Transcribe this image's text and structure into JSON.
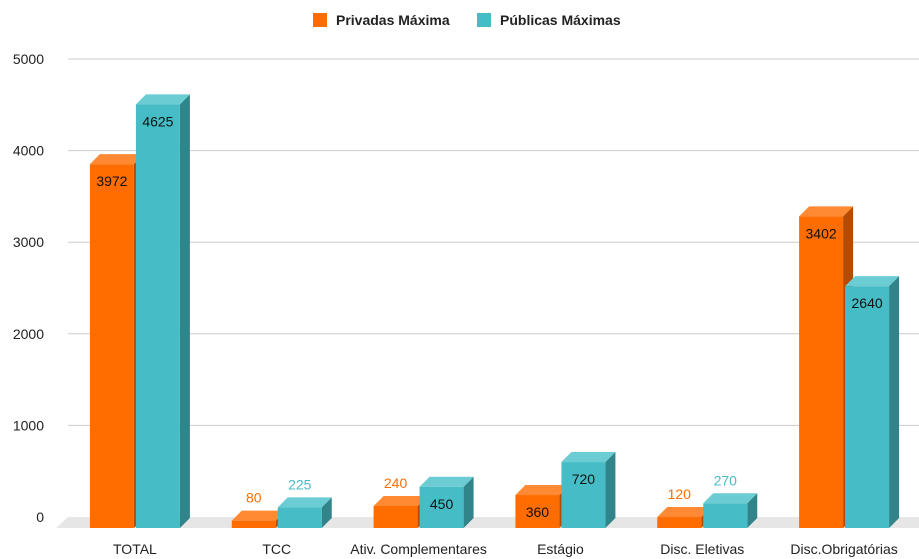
{
  "chart_data": {
    "type": "bar",
    "title": "",
    "xlabel": "",
    "ylabel": "",
    "categories": [
      "TOTAL",
      "TCC",
      "Ativ. Complementares",
      "Estágio",
      "Disc. Eletivas",
      "Disc.Obrigatórias"
    ],
    "series": [
      {
        "name": "Privadas Máxima",
        "values": [
          3972,
          80,
          240,
          360,
          120,
          3402
        ],
        "labels": [
          "3972",
          "80",
          "240",
          "360",
          "120",
          "3402"
        ],
        "color": "#ff6d01",
        "side_color": "#b34c00",
        "top_color": "#ff8a33"
      },
      {
        "name": "Públicas Máximas",
        "values": [
          4625,
          225,
          450,
          720,
          270,
          2640
        ],
        "labels": [
          "4625",
          "225",
          "450",
          "720",
          "270",
          "2640"
        ],
        "color": "#46bdc6",
        "side_color": "#31848a",
        "top_color": "#6bccd3"
      }
    ],
    "yticks": [
      "0",
      "1000",
      "2000",
      "3000",
      "4000",
      "5000"
    ],
    "ylim": [
      0,
      5000
    ],
    "grid": true,
    "legend_position": "top-center",
    "style": "3d-bars"
  }
}
